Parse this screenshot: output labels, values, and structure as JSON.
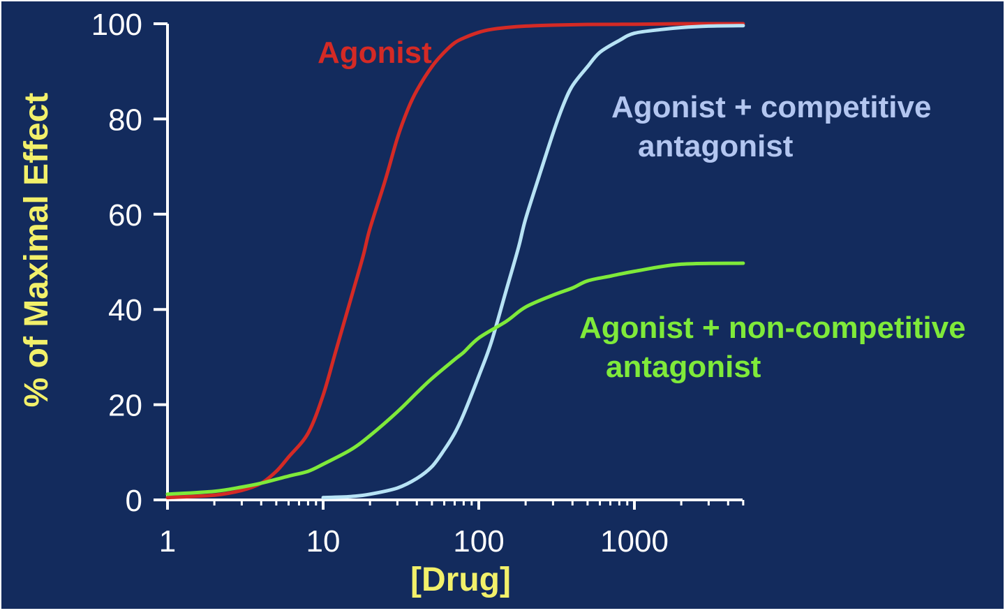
{
  "colors": {
    "background": "#132b5d",
    "axis": "#ffffff",
    "axis_title": "#f2f06a",
    "agonist": "#d42a25",
    "competitive": "#b7e3f5",
    "noncompetitive": "#7fea3a",
    "competitive_label": "#b3c6f0"
  },
  "chart_data": {
    "type": "line",
    "xscale": "log",
    "xlabel": "[Drug]",
    "ylabel": "% of Maximal Effect",
    "xlim": [
      1,
      5000
    ],
    "ylim": [
      0,
      100
    ],
    "xticks": [
      1,
      10,
      100,
      1000
    ],
    "xtick_labels": [
      "1",
      "10",
      "100",
      "1000"
    ],
    "yticks": [
      0,
      20,
      40,
      60,
      80,
      100
    ],
    "ytick_labels": [
      "0",
      "20",
      "40",
      "60",
      "80",
      "100"
    ],
    "grid": false,
    "series": [
      {
        "name": "Agonist",
        "x": [
          1,
          2,
          3,
          4,
          5,
          6,
          8,
          10,
          12,
          15,
          18,
          20,
          25,
          30,
          35,
          40,
          50,
          60,
          70,
          80,
          100,
          120,
          150,
          200,
          300,
          500,
          1000,
          2000,
          5000
        ],
        "y": [
          0.5,
          1,
          2,
          3.5,
          6,
          9,
          14,
          22,
          31,
          42,
          51,
          57,
          67,
          76,
          82,
          86,
          91,
          94,
          96,
          97,
          98.2,
          98.8,
          99.2,
          99.5,
          99.7,
          99.85,
          99.9,
          100,
          100
        ]
      },
      {
        "name": "Agonist + competitive antagonist",
        "x": [
          10,
          15,
          20,
          30,
          40,
          50,
          60,
          70,
          80,
          100,
          120,
          150,
          180,
          200,
          250,
          300,
          350,
          400,
          500,
          600,
          800,
          1000,
          1500,
          2000,
          3000,
          5000
        ],
        "y": [
          0.5,
          0.7,
          1.2,
          2.5,
          4.5,
          7,
          10.5,
          14,
          18,
          26,
          33,
          44,
          53,
          59,
          69,
          77,
          83,
          87,
          91,
          94,
          96.5,
          98,
          98.8,
          99.2,
          99.5,
          99.6
        ]
      },
      {
        "name": "Agonist + non-competitive antagonist",
        "x": [
          1,
          2,
          3,
          4,
          6,
          8,
          10,
          15,
          20,
          30,
          40,
          50,
          70,
          80,
          100,
          150,
          200,
          300,
          400,
          500,
          700,
          1000,
          2000,
          5000
        ],
        "y": [
          1.2,
          1.8,
          2.7,
          3.5,
          5,
          6,
          7.5,
          10.5,
          13.5,
          18.5,
          22.5,
          25.5,
          29.5,
          31,
          34,
          37.5,
          40.5,
          43,
          44.5,
          46,
          47,
          48,
          49.5,
          49.7
        ]
      }
    ]
  },
  "labels": {
    "agonist": "Agonist",
    "competitive_line1": "Agonist + competitive",
    "competitive_line2": "antagonist",
    "noncompetitive_line1": "Agonist + non-competitive",
    "noncompetitive_line2": "antagonist"
  }
}
